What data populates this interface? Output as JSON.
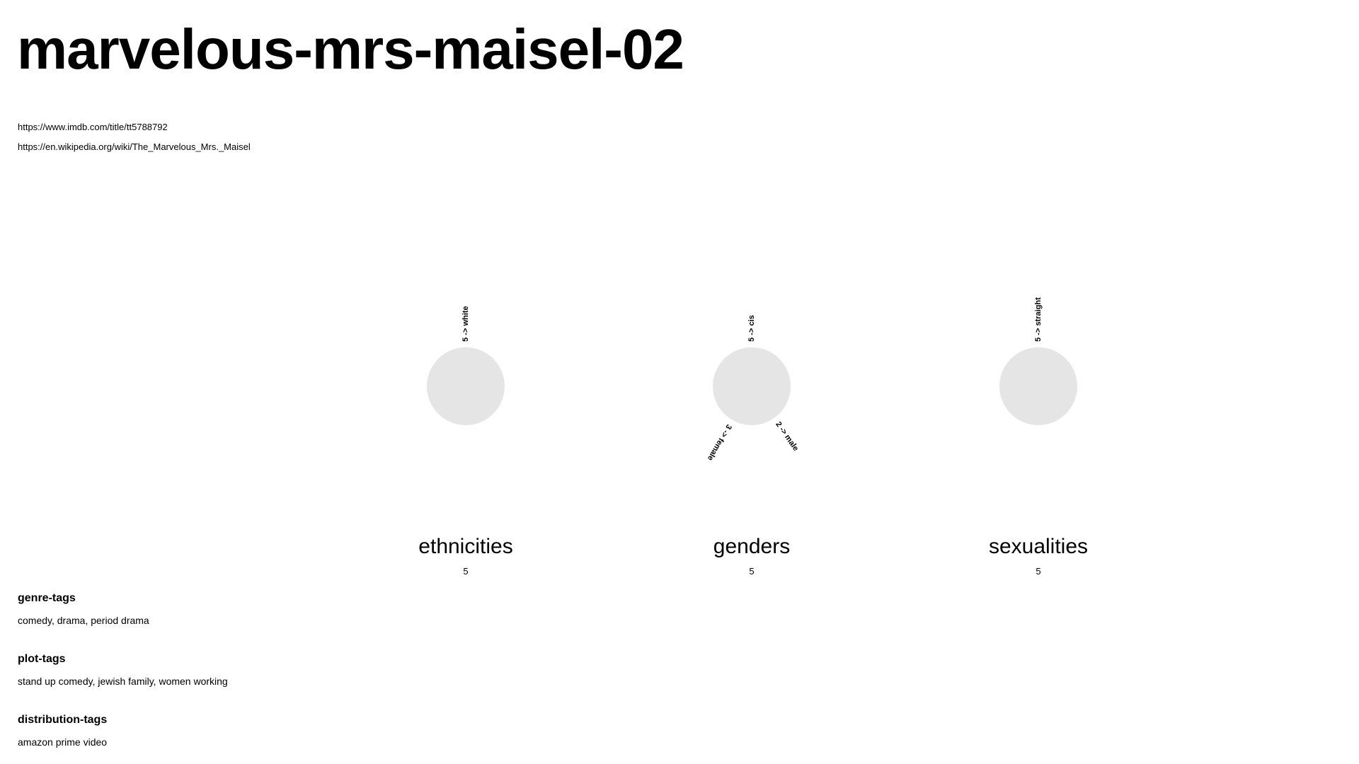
{
  "page": {
    "title": "marvelous-mrs-maisel-02",
    "links": [
      "https://www.imdb.com/title/tt5788792",
      "https://en.wikipedia.org/wiki/The_Marvelous_Mrs._Maisel"
    ]
  },
  "colors": {
    "circle_fill": "#e5e5e5",
    "text": "#000000",
    "background": "#ffffff"
  },
  "chart_data": [
    {
      "type": "radial",
      "label": "ethnicities",
      "total": "5",
      "spokes": [
        {
          "text": "5 ->  white",
          "value": 5,
          "angle_deg": 0
        }
      ]
    },
    {
      "type": "radial",
      "label": "genders",
      "total": "5",
      "spokes": [
        {
          "text": "5 ->  cis",
          "value": 5,
          "angle_deg": 0
        },
        {
          "text": "2 ->  male",
          "value": 2,
          "angle_deg": 145
        },
        {
          "text": "3 ->  female",
          "value": 3,
          "angle_deg": 210
        }
      ]
    },
    {
      "type": "radial",
      "label": "sexualities",
      "total": "5",
      "spokes": [
        {
          "text": "5 ->  straight",
          "value": 5,
          "angle_deg": 0
        }
      ]
    }
  ],
  "tags": [
    {
      "heading": "genre-tags",
      "value": "comedy, drama, period drama"
    },
    {
      "heading": "plot-tags",
      "value": "stand up comedy, jewish family, women working"
    },
    {
      "heading": "distribution-tags",
      "value": "amazon prime video"
    }
  ]
}
